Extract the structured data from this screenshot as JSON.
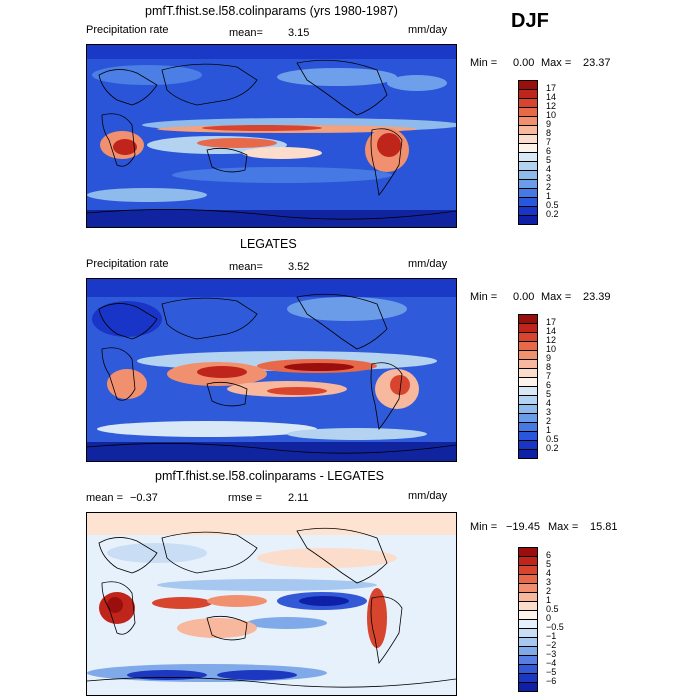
{
  "season": "DJF",
  "panels": [
    {
      "title": "pmfT.fhist.se.l58.colinparams (yrs 1980-1987)",
      "left_label": "Precipitation rate",
      "stat1_label": "mean=",
      "stat1_value": "3.15",
      "stat2_label": "",
      "stat2_value": "",
      "units": "mm/day",
      "min_label": "Min =",
      "min_value": "0.00",
      "max_label": "Max =",
      "max_value": "23.37",
      "colorbar_levels": [
        "17",
        "14",
        "12",
        "10",
        "9",
        "8",
        "7",
        "6",
        "5",
        "4",
        "3",
        "2",
        "1",
        "0.5",
        "0.2"
      ],
      "colorbar_colors": [
        "#9b0e0e",
        "#c0251b",
        "#d8452e",
        "#e8694a",
        "#f1906f",
        "#f7b89d",
        "#fcdccb",
        "#fdf3ea",
        "#d8e8f6",
        "#b4d3f1",
        "#8fbaec",
        "#6a9ce8",
        "#4679e4",
        "#2a56dc",
        "#1835c8",
        "#0e1fa8"
      ]
    },
    {
      "title": "LEGATES",
      "left_label": "Precipitation rate",
      "stat1_label": "mean=",
      "stat1_value": "3.52",
      "stat2_label": "",
      "stat2_value": "",
      "units": "mm/day",
      "min_label": "Min =",
      "min_value": "0.00",
      "max_label": "Max =",
      "max_value": "23.39",
      "colorbar_levels": [
        "17",
        "14",
        "12",
        "10",
        "9",
        "8",
        "7",
        "6",
        "5",
        "4",
        "3",
        "2",
        "1",
        "0.5",
        "0.2"
      ],
      "colorbar_colors": [
        "#9b0e0e",
        "#c0251b",
        "#d8452e",
        "#e8694a",
        "#f1906f",
        "#f7b89d",
        "#fcdccb",
        "#fdf3ea",
        "#d8e8f6",
        "#b4d3f1",
        "#8fbaec",
        "#6a9ce8",
        "#4679e4",
        "#2a56dc",
        "#1835c8",
        "#0e1fa8"
      ]
    },
    {
      "title": "pmfT.fhist.se.l58.colinparams - LEGATES",
      "left_label": "",
      "stat1_label": "mean =",
      "stat1_value": "−0.37",
      "stat2_label": "rmse =",
      "stat2_value": "2.11",
      "units": "mm/day",
      "min_label": "Min =",
      "min_value": "−19.45",
      "max_label": "Max =",
      "max_value": "15.81",
      "colorbar_levels": [
        "6",
        "5",
        "4",
        "3",
        "2",
        "1",
        "0.5",
        "0",
        "−0.5",
        "−1",
        "−2",
        "−3",
        "−4",
        "−5",
        "−6"
      ],
      "colorbar_colors": [
        "#9b0e0e",
        "#c0251b",
        "#d8452e",
        "#e8694a",
        "#f1906f",
        "#f7b89d",
        "#fcdccb",
        "#fdf3ea",
        "#e7f1fb",
        "#c9def5",
        "#a6c7ef",
        "#7fa9e9",
        "#567ee3",
        "#3459d6",
        "#1c37c0",
        "#0e1fa8"
      ]
    }
  ],
  "chart_data": [
    {
      "type": "heatmap",
      "title": "pmfT.fhist.se.l58.colinparams (yrs 1980-1987)",
      "variable": "Precipitation rate",
      "units": "mm/day",
      "mean": 3.15,
      "min": 0.0,
      "max": 23.37,
      "contour_levels": [
        0.2,
        0.5,
        1,
        2,
        3,
        4,
        5,
        6,
        7,
        8,
        9,
        10,
        12,
        14,
        17
      ],
      "projection": "global cylindrical equidistant, Pacific-centered"
    },
    {
      "type": "heatmap",
      "title": "LEGATES",
      "variable": "Precipitation rate",
      "units": "mm/day",
      "mean": 3.52,
      "min": 0.0,
      "max": 23.39,
      "contour_levels": [
        0.2,
        0.5,
        1,
        2,
        3,
        4,
        5,
        6,
        7,
        8,
        9,
        10,
        12,
        14,
        17
      ],
      "projection": "global cylindrical equidistant, Pacific-centered"
    },
    {
      "type": "heatmap",
      "title": "pmfT.fhist.se.l58.colinparams - LEGATES",
      "units": "mm/day",
      "mean": -0.37,
      "rmse": 2.11,
      "min": -19.45,
      "max": 15.81,
      "contour_levels": [
        -6,
        -5,
        -4,
        -3,
        -2,
        -1,
        -0.5,
        0,
        0.5,
        1,
        2,
        3,
        4,
        5,
        6
      ],
      "projection": "global cylindrical equidistant, Pacific-centered"
    }
  ]
}
